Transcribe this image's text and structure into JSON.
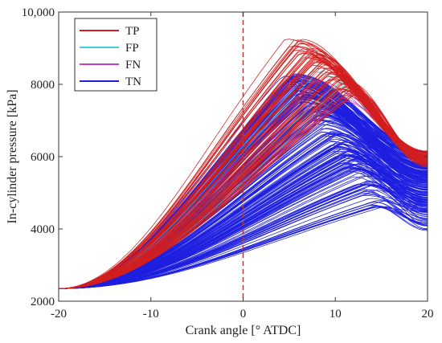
{
  "chart_data": {
    "type": "line",
    "title": "",
    "xlabel": "Crank angle [° ATDC]",
    "ylabel": "In-cylinder pressure [kPa]",
    "xlim": [
      -20,
      20
    ],
    "ylim": [
      2000,
      10000
    ],
    "xticks": [
      -20,
      -10,
      0,
      10,
      20
    ],
    "yticks": [
      2000,
      4000,
      6000,
      8000,
      10000
    ],
    "xtick_labels": [
      "-20",
      "-10",
      "0",
      "10",
      "20"
    ],
    "ytick_labels": [
      "2000",
      "4000",
      "6000",
      "8000",
      "10,000"
    ],
    "grid": false,
    "legend_position": "top-left",
    "reference_line": {
      "x": 0,
      "style": "dashed",
      "color": "#b03a3a"
    },
    "start_point": {
      "x": -20,
      "y": 2350
    },
    "series": [
      {
        "name": "TP",
        "color": "#d21f1f",
        "curve_count": 70,
        "peak_x_range": [
          5,
          12
        ],
        "peak_y_range": [
          7700,
          9300
        ],
        "end_y_range": [
          5700,
          6150
        ]
      },
      {
        "name": "FP",
        "color": "#3fd0d8",
        "curve_count": 5,
        "peak_x_range": [
          8,
          11
        ],
        "peak_y_range": [
          7900,
          8400
        ],
        "end_y_range": [
          5900,
          6100
        ]
      },
      {
        "name": "FN",
        "color": "#c43fc4",
        "curve_count": 5,
        "peak_x_range": [
          8,
          12
        ],
        "peak_y_range": [
          7400,
          8200
        ],
        "end_y_range": [
          5800,
          6100
        ]
      },
      {
        "name": "TN",
        "color": "#1f1fe0",
        "curve_count": 240,
        "peak_x_range": [
          5,
          15
        ],
        "peak_y_range": [
          4550,
          8300
        ],
        "end_y_range": [
          3750,
          6150
        ]
      }
    ]
  }
}
